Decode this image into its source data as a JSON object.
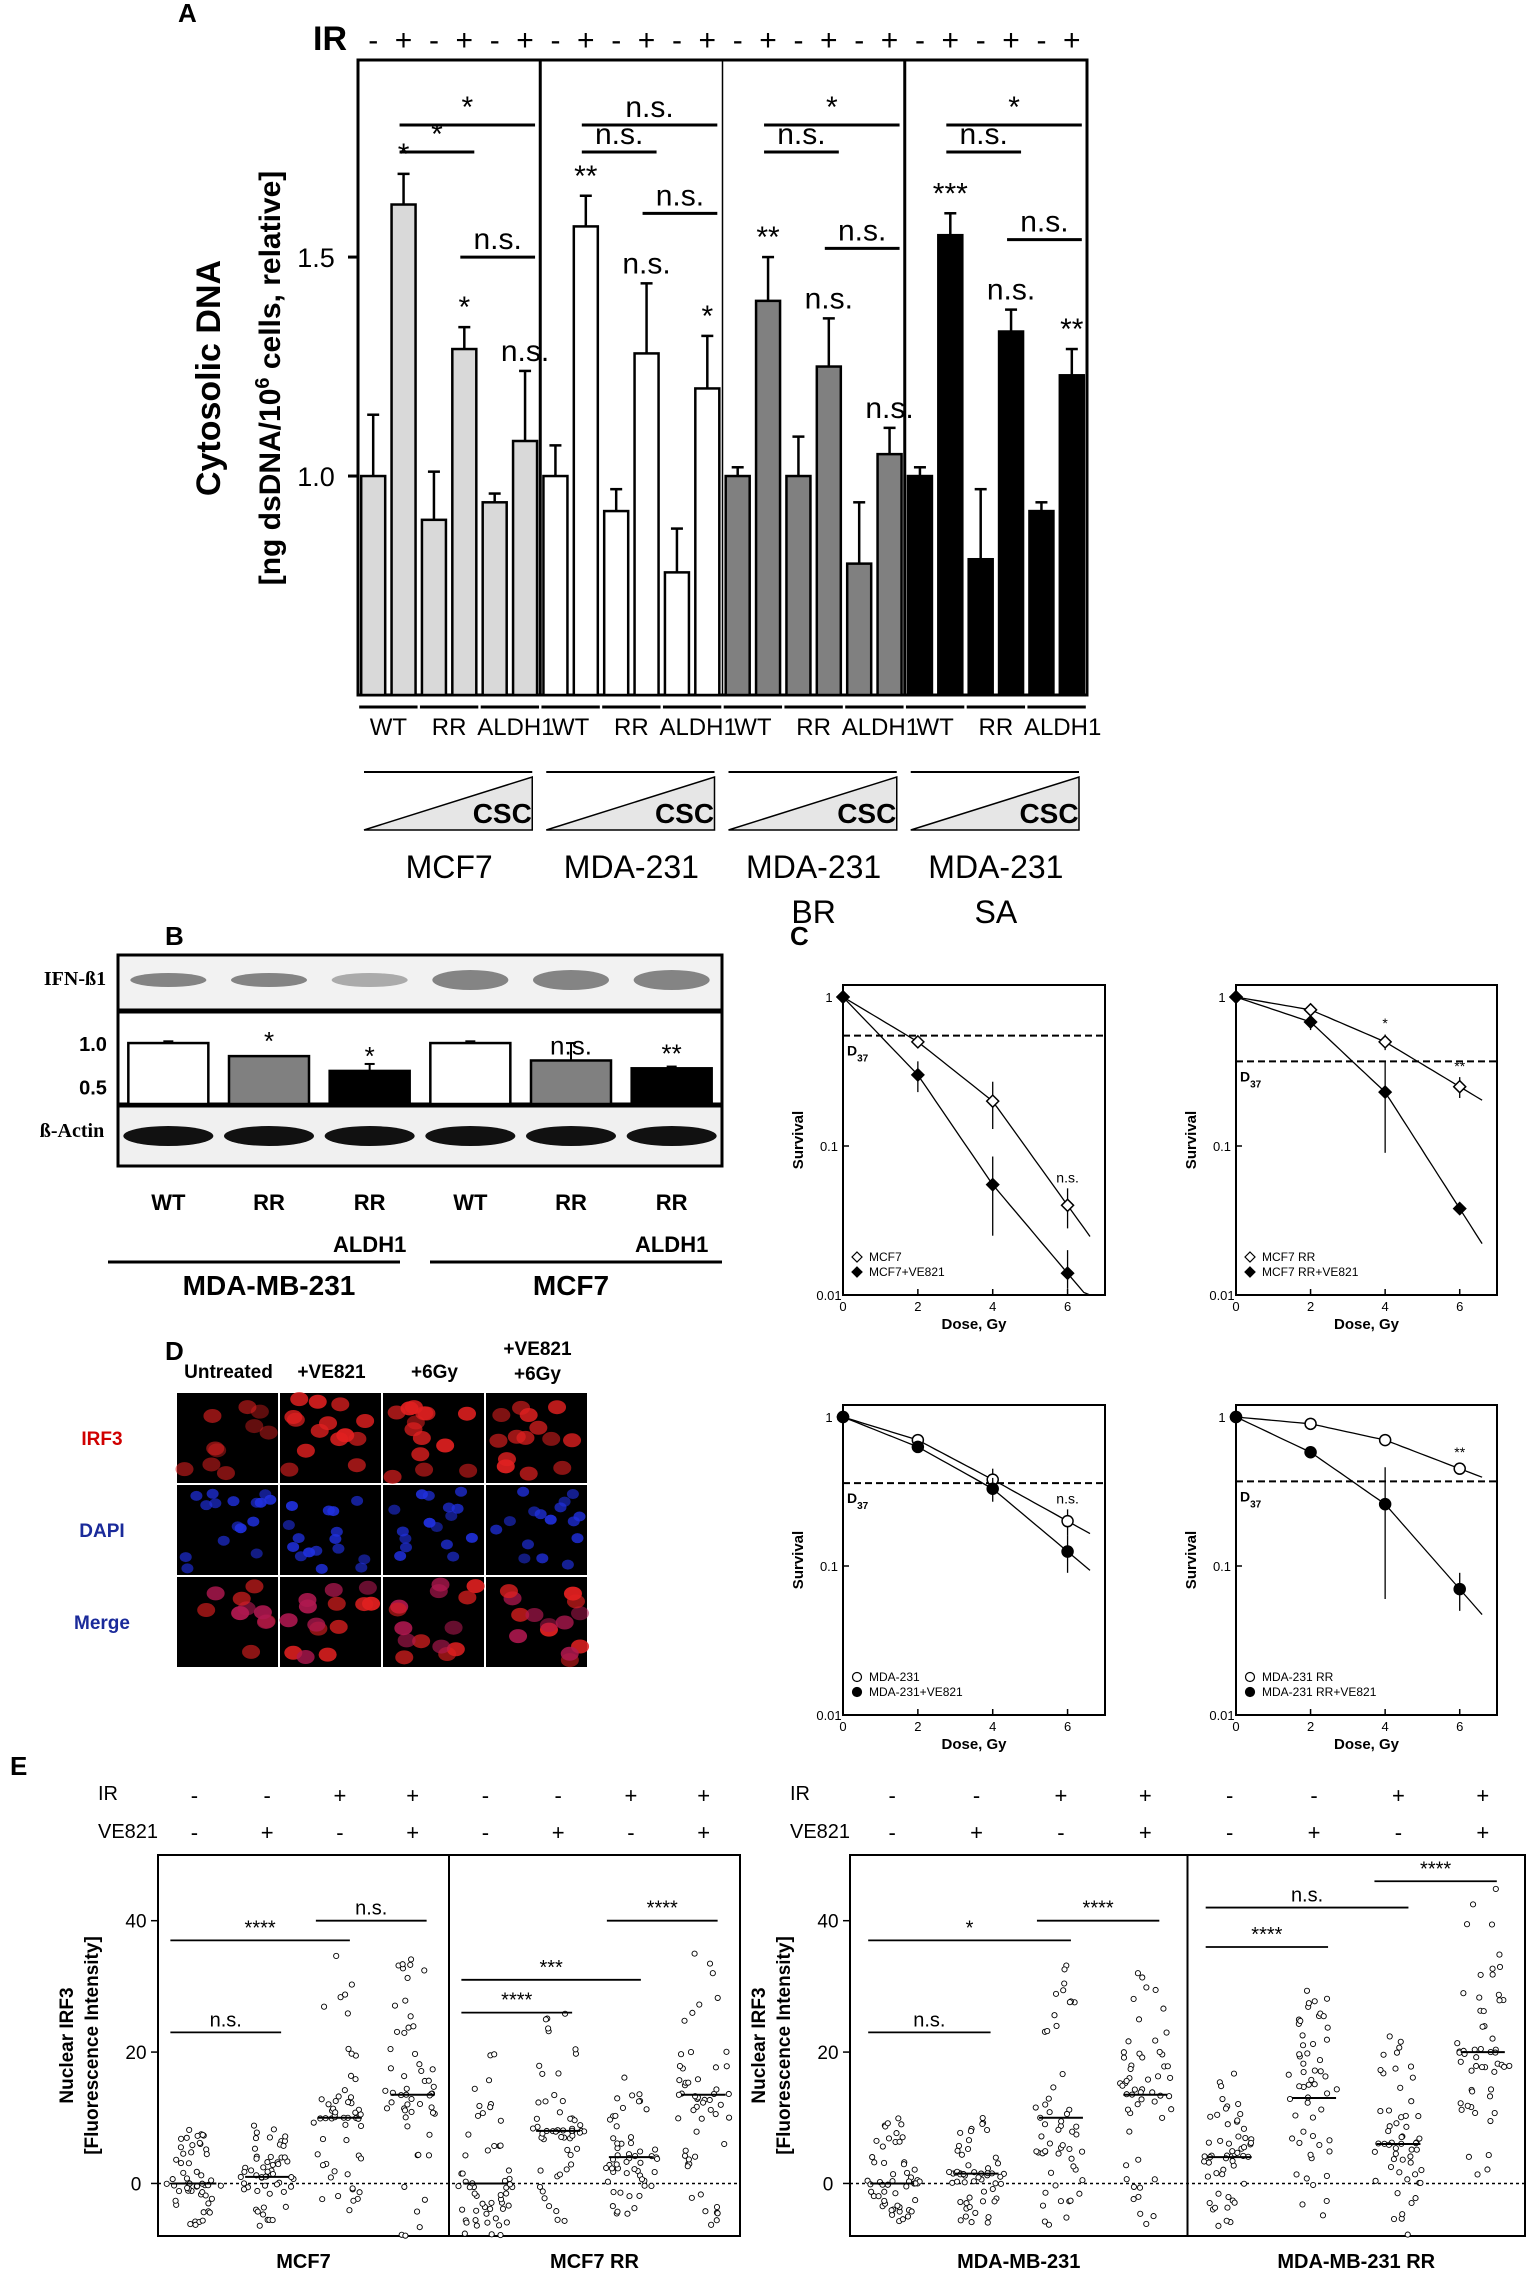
{
  "panel_labels": [
    "A",
    "B",
    "C",
    "D",
    "E"
  ],
  "colors": {
    "mcf7": "#d9d9d9",
    "mda231": "#ffffff",
    "br": "#808080",
    "sa": "#000000",
    "irf3": "#e02020",
    "dapi": "#2030e0",
    "merge": "#b01850"
  },
  "chart_data": [
    {
      "panel": "A",
      "type": "bar",
      "ylabel_line1": "Cytosolic DNA",
      "ylabel_line2": "[ng dsDNA/10",
      "ylabel_sup": "6",
      "ylabel_line2_end": " cells, relative]",
      "yticks": [
        "1.0",
        "1.5"
      ],
      "ylim": [
        0.5,
        1.95
      ],
      "ir_label": "IR",
      "ir_signs": [
        "-",
        "+",
        "-",
        "+",
        "-",
        "+"
      ],
      "subgroups": [
        "WT",
        "RR",
        "ALDH1"
      ],
      "csc_label": "CSC",
      "groups": [
        {
          "name": "MCF7",
          "name2": "",
          "color": "#d9d9d9",
          "values": [
            1.0,
            1.62,
            0.9,
            1.29,
            0.94,
            1.08
          ],
          "errors": [
            0.14,
            0.07,
            0.11,
            0.05,
            0.02,
            0.16
          ],
          "marks": [
            "",
            "*",
            "",
            "*",
            "",
            "n.s."
          ],
          "brackets": [
            {
              "from": 1,
              "to": 5,
              "label": "*"
            },
            {
              "from": 1,
              "to": 3,
              "label": "*"
            },
            {
              "from": 3,
              "to": 5,
              "label": "n.s."
            }
          ]
        },
        {
          "name": "MDA-231",
          "name2": "",
          "color": "#ffffff",
          "values": [
            1.0,
            1.57,
            0.92,
            1.28,
            0.78,
            1.2
          ],
          "errors": [
            0.07,
            0.07,
            0.05,
            0.16,
            0.1,
            0.12
          ],
          "marks": [
            "",
            "**",
            "",
            "n.s.",
            "",
            "*"
          ],
          "brackets": [
            {
              "from": 1,
              "to": 5,
              "label": "n.s."
            },
            {
              "from": 1,
              "to": 3,
              "label": "n.s."
            },
            {
              "from": 3,
              "to": 5,
              "label": "n.s."
            }
          ]
        },
        {
          "name": "MDA-231",
          "name2": "BR",
          "color": "#808080",
          "values": [
            1.0,
            1.4,
            1.0,
            1.25,
            0.8,
            1.05
          ],
          "errors": [
            0.02,
            0.1,
            0.09,
            0.11,
            0.14,
            0.06
          ],
          "marks": [
            "",
            "**",
            "",
            "n.s.",
            "",
            "n.s."
          ],
          "brackets": [
            {
              "from": 1,
              "to": 5,
              "label": "*"
            },
            {
              "from": 1,
              "to": 3,
              "label": "n.s."
            },
            {
              "from": 3,
              "to": 5,
              "label": "n.s."
            }
          ]
        },
        {
          "name": "MDA-231",
          "name2": "SA",
          "color": "#000000",
          "values": [
            1.0,
            1.55,
            0.81,
            1.33,
            0.92,
            1.23
          ],
          "errors": [
            0.02,
            0.05,
            0.16,
            0.05,
            0.02,
            0.06
          ],
          "marks": [
            "",
            "***",
            "",
            "n.s.",
            "",
            "**"
          ],
          "brackets": [
            {
              "from": 1,
              "to": 5,
              "label": "*"
            },
            {
              "from": 1,
              "to": 3,
              "label": "n.s."
            },
            {
              "from": 3,
              "to": 5,
              "label": "n.s."
            }
          ]
        }
      ]
    },
    {
      "panel": "B",
      "type": "bar",
      "blot_top_label": "IFN-ß1",
      "blot_bottom_label": "ß-Actin",
      "yticks": [
        "1.0",
        "0.5"
      ],
      "ylim": [
        0.3,
        1.15
      ],
      "lanes": [
        "WT",
        "RR",
        "RR",
        "WT",
        "RR",
        "RR"
      ],
      "lane_sub": [
        "",
        "",
        "ALDH1",
        "",
        "",
        "ALDH1"
      ],
      "values": [
        1.0,
        0.85,
        0.68,
        1.0,
        0.8,
        0.71
      ],
      "errors": [
        0.02,
        0.0,
        0.08,
        0.02,
        0.2,
        0.02
      ],
      "bar_colors": [
        "#ffffff",
        "#808080",
        "#000000",
        "#ffffff",
        "#808080",
        "#000000"
      ],
      "marks": [
        "",
        "*",
        "*",
        "",
        "n.s.",
        "**"
      ],
      "groups": [
        "MDA-MB-231",
        "MCF7"
      ]
    },
    {
      "panel": "C",
      "type": "line",
      "xlabel": "Dose,  Gy",
      "xlabel_alt": "Dose, Gy",
      "ylabel": "Survival",
      "yticks": [
        "1",
        "0.1",
        "0.01"
      ],
      "xticks": [
        "0",
        "2",
        "4",
        "6"
      ],
      "ylim": [
        0.01,
        1
      ],
      "xlim": [
        0,
        7
      ],
      "yscale": "log",
      "d37_label": "D",
      "d37_sub": "37",
      "plots": [
        {
          "d37": 0.55,
          "note": "n.s.",
          "series": [
            {
              "name": "MCF7",
              "marker": "diamond-open",
              "x": [
                0,
                2,
                4,
                6
              ],
              "y": [
                1,
                0.5,
                0.2,
                0.04
              ],
              "err": [
                0,
                0.04,
                0.07,
                0.012
              ]
            },
            {
              "name": "MCF7+VE821",
              "marker": "diamond-filled",
              "x": [
                0,
                2,
                4,
                6
              ],
              "y": [
                1,
                0.3,
                0.055,
                0.014
              ],
              "err": [
                0,
                0.07,
                0.03,
                0.006
              ]
            }
          ]
        },
        {
          "d37": 0.37,
          "note": "**",
          "note2": "*",
          "series": [
            {
              "name": "MCF7 RR",
              "marker": "diamond-open",
              "x": [
                0,
                2,
                4,
                6
              ],
              "y": [
                1,
                0.82,
                0.5,
                0.25
              ],
              "err": [
                0,
                0.08,
                0.06,
                0.04
              ]
            },
            {
              "name": "MCF7 RR+VE821",
              "marker": "diamond-filled",
              "x": [
                0,
                2,
                4,
                6
              ],
              "y": [
                1,
                0.68,
                0.23,
                0.038
              ],
              "err": [
                0,
                0.08,
                0.14,
                0.003
              ]
            }
          ]
        },
        {
          "d37": 0.36,
          "note": "n.s.",
          "series": [
            {
              "name": "MDA-231",
              "marker": "circle-open",
              "x": [
                0,
                2,
                4,
                6
              ],
              "y": [
                1,
                0.7,
                0.38,
                0.2
              ],
              "err": [
                0,
                0.05,
                0.07,
                0.04
              ]
            },
            {
              "name": "MDA-231+VE821",
              "marker": "circle-filled",
              "x": [
                0,
                2,
                4,
                6
              ],
              "y": [
                1,
                0.63,
                0.33,
                0.125
              ],
              "err": [
                0,
                0.05,
                0.06,
                0.035
              ]
            }
          ]
        },
        {
          "d37": 0.37,
          "note": "**",
          "series": [
            {
              "name": "MDA-231 RR",
              "marker": "circle-open",
              "x": [
                0,
                2,
                4,
                6
              ],
              "y": [
                1,
                0.9,
                0.7,
                0.45
              ],
              "err": [
                0,
                0.03,
                0.03,
                0.04
              ]
            },
            {
              "name": "MDA-231 RR+VE821",
              "marker": "circle-filled",
              "x": [
                0,
                2,
                4,
                6
              ],
              "y": [
                1,
                0.58,
                0.26,
                0.07
              ],
              "err": [
                0,
                0.04,
                0.2,
                0.02
              ]
            }
          ]
        }
      ]
    },
    {
      "panel": "E",
      "type": "scatter",
      "ylabel_line1": "Nuclear IRF3",
      "ylabel_line2": "[Fluorescence Intensity]",
      "yticks": [
        "0",
        "20",
        "40"
      ],
      "ylim": [
        -8,
        50
      ],
      "row_labels": [
        "IR",
        "VE821"
      ],
      "ir_signs": [
        "-",
        "-",
        "+",
        "+",
        "-",
        "-",
        "+",
        "+"
      ],
      "ve_signs": [
        "-",
        "+",
        "-",
        "+",
        "-",
        "+",
        "-",
        "+"
      ],
      "plots": [
        {
          "groups": [
            "MCF7",
            "MCF7 RR"
          ],
          "medians": [
            0,
            1,
            10,
            13.5,
            0,
            8,
            4,
            13.5
          ],
          "spreads": [
            [
              -7,
              9
            ],
            [
              -7,
              10
            ],
            [
              -5,
              36
            ],
            [
              -8,
              36
            ],
            [
              -8,
              20
            ],
            [
              -6,
              26
            ],
            [
              -5,
              17
            ],
            [
              -7,
              35
            ]
          ],
          "brackets": [
            {
              "from": 0,
              "to": 1,
              "y": 23,
              "label": "n.s."
            },
            {
              "from": 0,
              "to": 2,
              "y": 37,
              "label": "****"
            },
            {
              "from": 2,
              "to": 3,
              "y": 40,
              "label": "n.s."
            },
            {
              "from": 4,
              "to": 5,
              "y": 26,
              "label": "****"
            },
            {
              "from": 4,
              "to": 6,
              "y": 31,
              "label": "***"
            },
            {
              "from": 6,
              "to": 7,
              "y": 40,
              "label": "****"
            }
          ]
        },
        {
          "groups": [
            "MDA-MB-231",
            "MDA-MB-231 RR"
          ],
          "medians": [
            0,
            1.5,
            10,
            13.5,
            4,
            13,
            6,
            20
          ],
          "spreads": [
            [
              -6,
              10
            ],
            [
              -6,
              10
            ],
            [
              -8,
              35
            ],
            [
              -8,
              36
            ],
            [
              -7,
              17
            ],
            [
              -7,
              30
            ],
            [
              -8,
              25
            ],
            [
              -1,
              49
            ]
          ],
          "brackets": [
            {
              "from": 0,
              "to": 1,
              "y": 23,
              "label": "n.s."
            },
            {
              "from": 0,
              "to": 2,
              "y": 37,
              "label": "*"
            },
            {
              "from": 2,
              "to": 3,
              "y": 40,
              "label": "****"
            },
            {
              "from": 4,
              "to": 5,
              "y": 36,
              "label": "****"
            },
            {
              "from": 4,
              "to": 6,
              "y": 42,
              "label": "n.s."
            },
            {
              "from": 6,
              "to": 7,
              "y": 46,
              "label": "****"
            }
          ]
        }
      ]
    }
  ],
  "panel_d": {
    "columns": [
      "Untreated",
      "+VE821",
      "+6Gy",
      "+VE821",
      "+6Gy"
    ],
    "rows": [
      "IRF3",
      "DAPI",
      "Merge"
    ]
  }
}
